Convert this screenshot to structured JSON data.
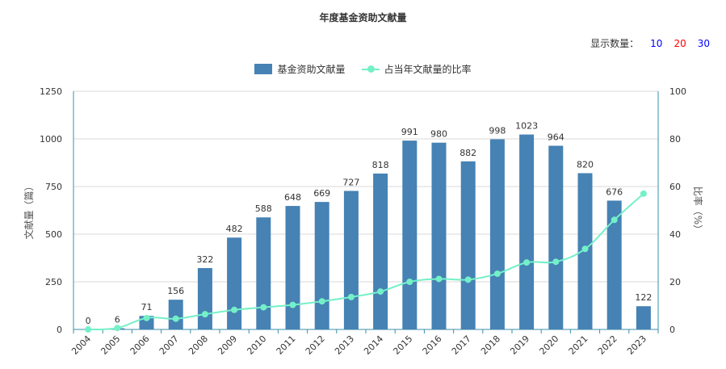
{
  "colors": {
    "bar": "#4682b4",
    "line": "#74f0c8",
    "axis": "#3a8fa8",
    "grid": "#d8d8d8",
    "opt10": "#0000ff",
    "opt20": "#ff0000",
    "opt30": "#0000ff"
  },
  "count_selector": {
    "label": "显示数量：",
    "options": [
      "10",
      "20",
      "30"
    ]
  },
  "chart_data": {
    "type": "bar",
    "title": "年度基金资助文献量",
    "categories": [
      "2004",
      "2005",
      "2006",
      "2007",
      "2008",
      "2009",
      "2010",
      "2011",
      "2012",
      "2013",
      "2014",
      "2015",
      "2016",
      "2017",
      "2018",
      "2019",
      "2020",
      "2021",
      "2022",
      "2023"
    ],
    "series": [
      {
        "name": "基金资助文献量",
        "type": "bar",
        "axis": "left",
        "values": [
          0,
          6,
          71,
          156,
          322,
          482,
          588,
          648,
          669,
          727,
          818,
          991,
          980,
          882,
          998,
          1023,
          964,
          820,
          676,
          122
        ]
      },
      {
        "name": "占当年文献量的比率",
        "type": "line",
        "axis": "right",
        "values": [
          0,
          0.6,
          4.8,
          4.5,
          6.4,
          8.2,
          9.3,
          10.3,
          11.8,
          13.6,
          15.9,
          20.0,
          21.2,
          20.9,
          23.4,
          28.1,
          28.4,
          33.8,
          46.0,
          57.0
        ]
      }
    ],
    "ylabel": "文献量（篇）",
    "y2label": "比率（%）",
    "ylim": [
      0,
      1250
    ],
    "y2lim": [
      0,
      100
    ],
    "yticks": [
      "0",
      "250",
      "500",
      "750",
      "1000",
      "1250"
    ],
    "y2ticks": [
      "0",
      "20",
      "40",
      "60",
      "80",
      "100"
    ],
    "grid": true,
    "legend_position": "top-center"
  }
}
